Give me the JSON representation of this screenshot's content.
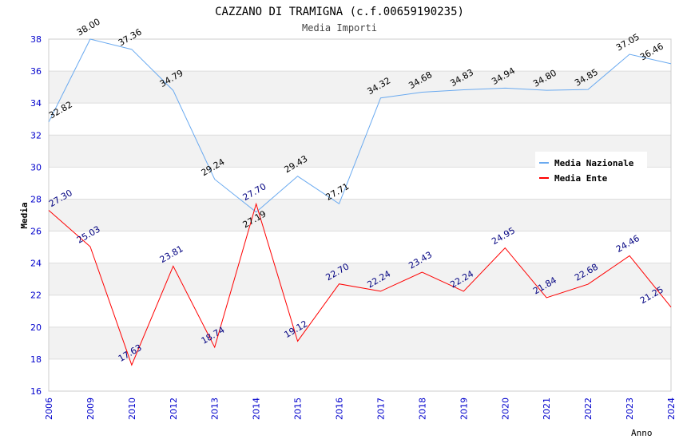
{
  "chart_data": {
    "type": "line",
    "title": "CAZZANO DI TRAMIGNA (c.f.00659190235)",
    "subtitle": "Media Importi",
    "xlabel": "Anno",
    "ylabel": "Media",
    "ylim": [
      16,
      38
    ],
    "yticks": [
      16,
      18,
      20,
      22,
      24,
      26,
      28,
      30,
      32,
      34,
      36,
      38
    ],
    "categories": [
      "2006",
      "2009",
      "2010",
      "2012",
      "2013",
      "2014",
      "2015",
      "2016",
      "2017",
      "2018",
      "2019",
      "2020",
      "2021",
      "2022",
      "2023",
      "2024"
    ],
    "legend_position": "top-right",
    "series": [
      {
        "name": "Media Nazionale",
        "color": "#6aaaf0",
        "label_color": "#000000",
        "values": [
          32.82,
          38.0,
          37.36,
          34.79,
          29.24,
          27.19,
          29.43,
          27.71,
          34.32,
          34.68,
          34.83,
          34.94,
          34.8,
          34.85,
          37.05,
          36.46
        ]
      },
      {
        "name": "Media Ente",
        "color": "#ff0000",
        "label_color": "#000080",
        "values": [
          27.3,
          25.03,
          17.63,
          23.81,
          18.74,
          27.7,
          19.12,
          22.7,
          22.24,
          23.43,
          22.24,
          24.95,
          21.84,
          22.68,
          24.46,
          21.25
        ]
      }
    ]
  }
}
